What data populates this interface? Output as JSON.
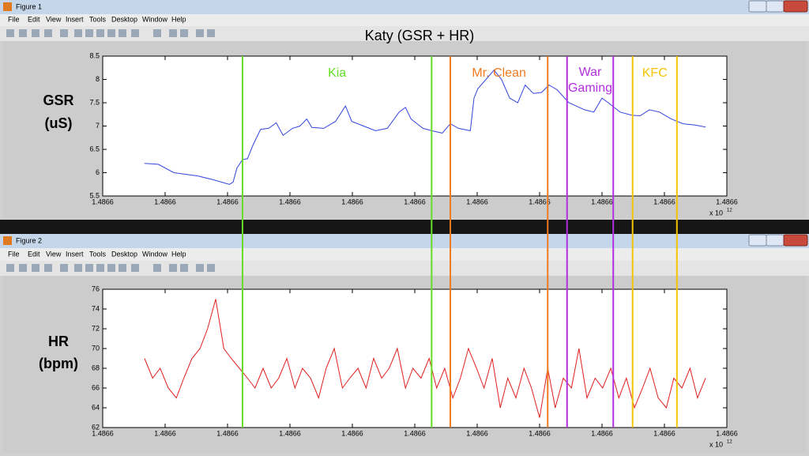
{
  "title": "Katy (GSR + HR)",
  "windows": [
    {
      "title": "Figure 1",
      "menu": [
        "File",
        "Edit",
        "View",
        "Insert",
        "Tools",
        "Desktop",
        "Window",
        "Help"
      ],
      "side_label": [
        "GSR",
        "(uS)"
      ]
    },
    {
      "title": "Figure 2",
      "menu": [
        "File",
        "Edit",
        "View",
        "Insert",
        "Tools",
        "Desktop",
        "Window",
        "Help"
      ],
      "side_label": [
        "HR",
        "(bpm)"
      ]
    }
  ],
  "markers": [
    {
      "label": [
        "Kia"
      ],
      "color": "#66dd22",
      "x": [
        1.48660224,
        1.48660527
      ]
    },
    {
      "label": [
        "Mr. Clean"
      ],
      "color": "#f07a20",
      "x": [
        1.48660557,
        1.48660713
      ]
    },
    {
      "label": [
        "War",
        "Gaming"
      ],
      "color": "#b030e0",
      "x": [
        1.48660744,
        1.48660818
      ]
    },
    {
      "label": [
        "KFC"
      ],
      "color": "#f5c400",
      "x": [
        1.48660849,
        1.4866092
      ]
    }
  ],
  "chart_data": [
    {
      "type": "line",
      "color": "#3344dd",
      "xlim": [
        1.4866,
        1.48661
      ],
      "xticks": [
        {
          "value": 1.4866,
          "label": "1.4866"
        },
        {
          "value": 1.486601,
          "label": "1.4866"
        },
        {
          "value": 1.486602,
          "label": "1.4866"
        },
        {
          "value": 1.486603,
          "label": "1.4866"
        },
        {
          "value": 1.486604,
          "label": "1.4866"
        },
        {
          "value": 1.486605,
          "label": "1.4866"
        },
        {
          "value": 1.486606,
          "label": "1.4866"
        },
        {
          "value": 1.486607,
          "label": "1.4866"
        },
        {
          "value": 1.486608,
          "label": "1.4866"
        },
        {
          "value": 1.486609,
          "label": "1.4866"
        },
        {
          "value": 1.48661,
          "label": "1.4866"
        }
      ],
      "x_scale_label": "x 10",
      "x_scale_power": "12",
      "ylim": [
        5.5,
        8.5
      ],
      "yticks": [
        5.5,
        6,
        6.5,
        7,
        7.5,
        8,
        8.5
      ],
      "x": [
        1.48660067,
        1.48660089,
        1.48660114,
        1.48660152,
        1.48660177,
        1.48660203,
        1.48660209,
        1.48660215,
        1.48660224,
        1.48660232,
        1.48660241,
        1.48660253,
        1.48660266,
        1.48660278,
        1.48660289,
        1.48660304,
        1.48660316,
        1.48660327,
        1.48660335,
        1.48660354,
        1.48660373,
        1.48660389,
        1.48660399,
        1.48660418,
        1.48660437,
        1.48660456,
        1.48660475,
        1.48660485,
        1.48660494,
        1.48660513,
        1.48660527,
        1.48660544,
        1.48660557,
        1.4866057,
        1.48660589,
        1.48660595,
        1.48660601,
        1.48660614,
        1.48660627,
        1.48660639,
        1.48660652,
        1.48660665,
        1.48660677,
        1.4866069,
        1.48660703,
        1.48660715,
        1.48660728,
        1.48660747,
        1.48660772,
        1.48660787,
        1.486608,
        1.4866081,
        1.48660829,
        1.48660848,
        1.48660861,
        1.48660876,
        1.48660892,
        1.48660911,
        1.4866093,
        1.48660949,
        1.48660966
      ],
      "values": [
        6.2,
        6.18,
        6.0,
        5.93,
        5.85,
        5.75,
        5.8,
        6.1,
        6.28,
        6.3,
        6.6,
        6.93,
        6.95,
        7.07,
        6.8,
        6.95,
        7.0,
        7.15,
        6.97,
        6.95,
        7.1,
        7.43,
        7.1,
        7.0,
        6.9,
        6.95,
        7.3,
        7.4,
        7.15,
        6.95,
        6.9,
        6.85,
        7.05,
        6.95,
        6.9,
        7.6,
        7.8,
        8.0,
        8.2,
        8.0,
        7.6,
        7.5,
        7.88,
        7.7,
        7.72,
        7.88,
        7.78,
        7.5,
        7.35,
        7.3,
        7.6,
        7.5,
        7.3,
        7.23,
        7.22,
        7.35,
        7.3,
        7.15,
        7.05,
        7.02,
        6.98
      ]
    },
    {
      "type": "line",
      "color": "#e02020",
      "xlim": [
        1.4866,
        1.48661
      ],
      "xticks": [
        {
          "value": 1.4866,
          "label": "1.4866"
        },
        {
          "value": 1.486601,
          "label": "1.4866"
        },
        {
          "value": 1.486602,
          "label": "1.4866"
        },
        {
          "value": 1.486603,
          "label": "1.4866"
        },
        {
          "value": 1.486604,
          "label": "1.4866"
        },
        {
          "value": 1.486605,
          "label": "1.4866"
        },
        {
          "value": 1.486606,
          "label": "1.4866"
        },
        {
          "value": 1.486607,
          "label": "1.4866"
        },
        {
          "value": 1.486608,
          "label": "1.4866"
        },
        {
          "value": 1.486609,
          "label": "1.4866"
        },
        {
          "value": 1.48661,
          "label": "1.4866"
        }
      ],
      "x_scale_label": "x 10",
      "x_scale_power": "12",
      "ylim": [
        62,
        76
      ],
      "yticks": [
        62,
        64,
        66,
        68,
        70,
        72,
        74,
        76
      ],
      "x": [
        1.48660067,
        1.4866008,
        1.48660092,
        1.48660105,
        1.48660118,
        1.4866013,
        1.48660143,
        1.48660156,
        1.48660168,
        1.48660181,
        1.48660194,
        1.48660206,
        1.48660219,
        1.48660232,
        1.48660244,
        1.48660257,
        1.4866027,
        1.48660282,
        1.48660295,
        1.48660308,
        1.4866032,
        1.48660333,
        1.48660346,
        1.48660358,
        1.48660371,
        1.48660384,
        1.48660396,
        1.48660409,
        1.48660422,
        1.48660434,
        1.48660447,
        1.48660459,
        1.48660472,
        1.48660485,
        1.48660497,
        1.4866051,
        1.48660523,
        1.48660535,
        1.48660548,
        1.48660561,
        1.48660573,
        1.48660586,
        1.48660599,
        1.48660611,
        1.48660624,
        1.48660637,
        1.48660649,
        1.48660662,
        1.48660675,
        1.48660687,
        1.486607,
        1.48660713,
        1.48660725,
        1.48660738,
        1.48660751,
        1.48660763,
        1.48660776,
        1.48660789,
        1.48660801,
        1.48660814,
        1.48660827,
        1.48660839,
        1.48660852,
        1.48660865,
        1.48660877,
        1.4866089,
        1.48660903,
        1.48660915,
        1.48660928,
        1.48660941,
        1.48660953,
        1.48660966
      ],
      "values": [
        69,
        67,
        68,
        66,
        65,
        67,
        69,
        70,
        72,
        75,
        70,
        69,
        68,
        67,
        66,
        68,
        66,
        67,
        69,
        66,
        68,
        67,
        65,
        68,
        70,
        66,
        67,
        68,
        66,
        69,
        67,
        68,
        70,
        66,
        68,
        67,
        69,
        66,
        68,
        65,
        67,
        70,
        68,
        66,
        69,
        64,
        67,
        65,
        68,
        66,
        63,
        68,
        64,
        67,
        66,
        70,
        65,
        67,
        66,
        68,
        65,
        67,
        64,
        66,
        68,
        65,
        64,
        67,
        66,
        68,
        65,
        67
      ]
    }
  ]
}
